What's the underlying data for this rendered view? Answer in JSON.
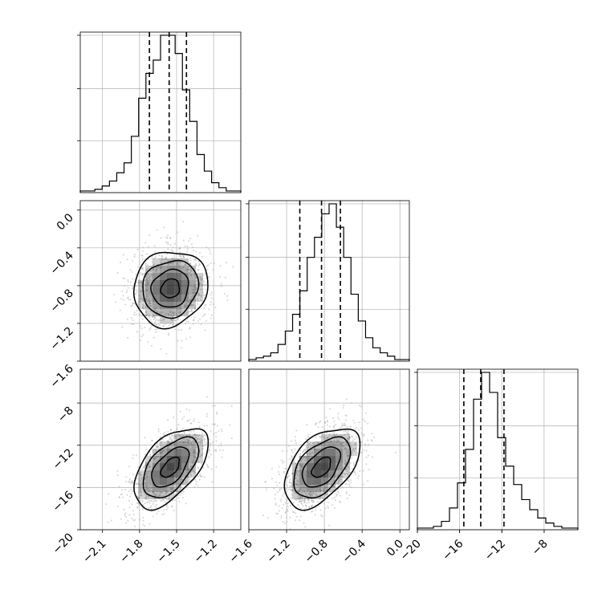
{
  "chart_data": [
    {
      "type": "histogram",
      "panel": "param1-marginal",
      "bin_range": [
        -2.28,
        -0.98
      ],
      "counts": [
        1,
        1,
        2,
        4,
        7,
        12,
        18,
        34,
        57,
        72,
        80,
        95,
        95,
        84,
        62,
        43,
        23,
        13,
        6,
        3,
        1,
        1
      ],
      "quantiles": [
        -1.72,
        -1.56,
        -1.42
      ],
      "grid": true
    },
    {
      "type": "histogram",
      "panel": "param2-marginal",
      "bin_range": [
        -1.6,
        0.1
      ],
      "xticks": [
        "−1.6",
        "−1.2",
        "−0.8",
        "−0.4",
        "0.0"
      ],
      "counts": [
        1,
        2,
        3,
        5,
        10,
        18,
        28,
        42,
        62,
        74,
        88,
        94,
        80,
        62,
        40,
        24,
        14,
        8,
        5,
        3,
        1,
        1
      ],
      "quantiles": [
        -1.06,
        -0.83,
        -0.63
      ],
      "grid": true
    },
    {
      "type": "histogram",
      "panel": "param3-marginal",
      "bin_range": [
        -20,
        -4.8
      ],
      "xticks": [
        "−20",
        "−16",
        "−12",
        "−8"
      ],
      "counts": [
        1,
        1,
        2,
        5,
        13,
        28,
        48,
        78,
        94,
        82,
        55,
        38,
        27,
        18,
        12,
        7,
        4,
        2,
        1,
        1
      ],
      "quantiles": [
        -15.6,
        -14.0,
        -11.8
      ],
      "grid": true
    },
    {
      "type": "scatter-contour",
      "panel": "param2-vs-param1",
      "x_range": [
        -2.28,
        -0.98
      ],
      "y_range": [
        -1.6,
        0.1
      ],
      "xticks": [
        "−2.1",
        "−1.8",
        "−1.5",
        "−1.2"
      ],
      "yticks": [
        "−1.6",
        "−1.2",
        "−0.8",
        "−0.4",
        "0.0"
      ],
      "center": [
        -1.55,
        -0.83
      ],
      "sigma": [
        0.15,
        0.2
      ],
      "correlation": 0.1,
      "contour_levels_sigma": [
        0.5,
        1.0,
        1.5,
        2.0
      ]
    },
    {
      "type": "scatter-contour",
      "panel": "param3-vs-param1",
      "x_range": [
        -2.28,
        -0.98
      ],
      "y_range": [
        -20,
        -4.8
      ],
      "xticks": [
        "−2.1",
        "−1.8",
        "−1.5",
        "−1.2"
      ],
      "yticks": [
        "−20",
        "−16",
        "−12",
        "−8"
      ],
      "center": [
        -1.55,
        -14.1
      ],
      "sigma": [
        0.15,
        1.9
      ],
      "correlation": 0.55,
      "contour_levels_sigma": [
        0.5,
        1.0,
        1.5,
        2.0
      ]
    },
    {
      "type": "scatter-contour",
      "panel": "param3-vs-param2",
      "x_range": [
        -1.6,
        0.1
      ],
      "y_range": [
        -20,
        -4.8
      ],
      "center": [
        -0.83,
        -14.1
      ],
      "sigma": [
        0.2,
        1.9
      ],
      "correlation": 0.5,
      "contour_levels_sigma": [
        0.5,
        1.0,
        1.5,
        2.0
      ]
    }
  ],
  "colors": {
    "points": "#b0b0b0",
    "line": "#000000",
    "grid": "#b0b0b0",
    "density": "#000000"
  }
}
